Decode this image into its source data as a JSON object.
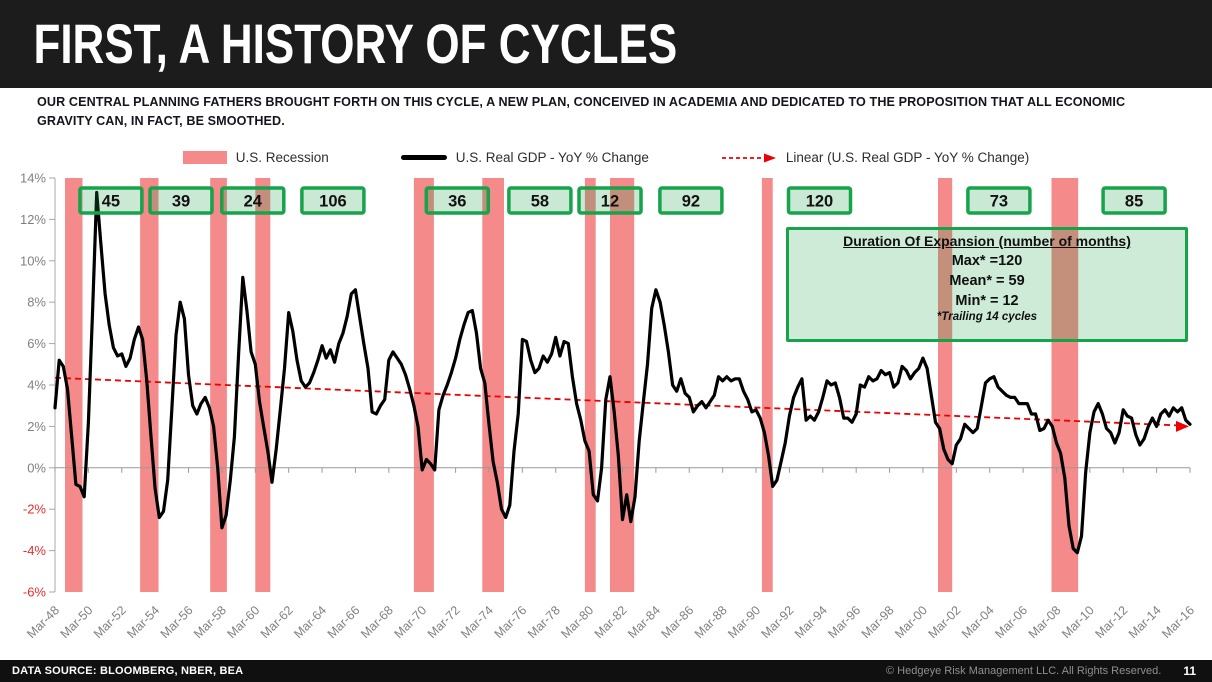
{
  "header": {
    "title": "FIRST, A HISTORY OF CYCLES"
  },
  "subtitle": "OUR CENTRAL PLANNING FATHERS BROUGHT FORTH ON THIS CYCLE, A NEW PLAN, CONCEIVED IN ACADEMIA AND DEDICATED TO THE PROPOSITION THAT ALL ECONOMIC GRAVITY CAN, IN FACT, BE SMOOTHED.",
  "legend": {
    "recession_label": "U.S. Recession",
    "gdp_label": "U.S. Real GDP - YoY % Change",
    "linear_label": "Linear (U.S. Real GDP - YoY % Change)"
  },
  "annotation_box": {
    "title": "Duration Of Expansion (number of months)",
    "max_line": "Max* =120",
    "mean_line": "Mean* = 59",
    "min_line": "Min* = 12",
    "footnote": "*Trailing 14 cycles"
  },
  "footer": {
    "data_source": "DATA SOURCE: BLOOMBERG, NBER, BEA",
    "copyright": "© Hedgeye Risk Management LLC. All Rights Reserved.",
    "page_number": "11"
  },
  "colors": {
    "header_bg": "#1C1C1C",
    "recession_fill": "#F48A8A",
    "gdp_line": "#000000",
    "trend_line": "#EC0000",
    "expansion_box_border": "#17A34B",
    "expansion_box_fill": "rgba(28,162,75,0.23)",
    "axis_line": "#A8A8A8",
    "zero_line": "#999999",
    "axis_label_gray": "#808080",
    "negative_label_red": "#E03030"
  },
  "chart_data": {
    "type": "line",
    "title": "U.S. Real GDP - YoY % Change with U.S. Recessions",
    "unit": "%",
    "xlim": [
      1948.2,
      2016.2
    ],
    "ylim": [
      -6,
      14
    ],
    "grid": "zero-line only",
    "legend_position": "top",
    "y_tick_values": [
      14,
      12,
      10,
      8,
      6,
      4,
      2,
      0,
      -2,
      -4,
      -6
    ],
    "y_tick_labels": [
      "14%",
      "12%",
      "10%",
      "8%",
      "6%",
      "4%",
      "2%",
      "0%",
      "-2%",
      "-4%",
      "-6%"
    ],
    "x_tick_step_years": 2,
    "x_tick_labels": [
      "Mar-48",
      "Mar-50",
      "Mar-52",
      "Mar-54",
      "Mar-56",
      "Mar-58",
      "Mar-60",
      "Mar-62",
      "Mar-64",
      "Mar-66",
      "Mar-68",
      "Mar-70",
      "Mar-72",
      "Mar-74",
      "Mar-76",
      "Mar-78",
      "Mar-80",
      "Mar-82",
      "Mar-84",
      "Mar-86",
      "Mar-88",
      "Mar-90",
      "Mar-92",
      "Mar-94",
      "Mar-96",
      "Mar-98",
      "Mar-00",
      "Mar-02",
      "Mar-04",
      "Mar-06",
      "Mar-08",
      "Mar-10",
      "Mar-12",
      "Mar-14",
      "Mar-16"
    ],
    "series": [
      {
        "name": "U.S. Real GDP - YoY % Change",
        "x_start": 1948.2,
        "x_step": 0.25,
        "values": [
          2.9,
          5.2,
          4.9,
          3.8,
          1.5,
          -0.8,
          -0.9,
          -1.4,
          2.2,
          7.6,
          13.3,
          10.8,
          8.4,
          6.9,
          5.8,
          5.4,
          5.5,
          4.9,
          5.3,
          6.2,
          6.8,
          6.2,
          4.2,
          1.5,
          -1.0,
          -2.4,
          -2.1,
          -0.6,
          2.8,
          6.4,
          8.0,
          7.2,
          4.5,
          3.0,
          2.6,
          3.1,
          3.4,
          2.9,
          2.0,
          0.0,
          -2.9,
          -2.3,
          -0.6,
          1.5,
          5.5,
          9.2,
          7.6,
          5.6,
          5.0,
          3.2,
          2.0,
          0.8,
          -0.7,
          0.9,
          2.8,
          4.8,
          7.5,
          6.6,
          5.2,
          4.2,
          3.9,
          4.1,
          4.6,
          5.2,
          5.9,
          5.3,
          5.7,
          5.1,
          6.0,
          6.5,
          7.3,
          8.4,
          8.6,
          7.3,
          6.0,
          4.8,
          2.7,
          2.6,
          3.0,
          3.3,
          5.2,
          5.6,
          5.3,
          5.0,
          4.5,
          3.8,
          3.0,
          2.0,
          -0.1,
          0.4,
          0.2,
          -0.1,
          2.8,
          3.5,
          4.0,
          4.6,
          5.3,
          6.2,
          6.9,
          7.5,
          7.6,
          6.5,
          4.8,
          4.1,
          2.1,
          0.3,
          -0.7,
          -2.0,
          -2.4,
          -1.8,
          0.8,
          2.6,
          6.2,
          6.1,
          5.2,
          4.6,
          4.8,
          5.4,
          5.1,
          5.5,
          6.3,
          5.4,
          6.1,
          6.0,
          4.4,
          3.1,
          2.3,
          1.3,
          0.8,
          -1.3,
          -1.6,
          0.0,
          3.3,
          4.4,
          2.7,
          0.6,
          -2.5,
          -1.3,
          -2.6,
          -1.4,
          1.3,
          3.2,
          5.0,
          7.7,
          8.6,
          8.0,
          6.9,
          5.6,
          4.0,
          3.7,
          4.3,
          3.6,
          3.4,
          2.7,
          3.0,
          3.2,
          2.9,
          3.2,
          3.5,
          4.4,
          4.2,
          4.4,
          4.2,
          4.3,
          4.3,
          3.7,
          3.3,
          2.7,
          2.8,
          2.4,
          1.7,
          0.6,
          -0.9,
          -0.6,
          0.3,
          1.2,
          2.5,
          3.4,
          3.9,
          4.3,
          2.3,
          2.5,
          2.3,
          2.7,
          3.4,
          4.2,
          4.0,
          4.1,
          3.4,
          2.4,
          2.4,
          2.2,
          2.6,
          4.0,
          3.9,
          4.4,
          4.2,
          4.3,
          4.7,
          4.5,
          4.6,
          3.9,
          4.1,
          4.9,
          4.7,
          4.3,
          4.6,
          4.8,
          5.3,
          4.8,
          3.5,
          2.2,
          1.9,
          0.9,
          0.4,
          0.2,
          1.1,
          1.4,
          2.1,
          1.9,
          1.7,
          1.9,
          3.0,
          4.1,
          4.3,
          4.4,
          3.9,
          3.7,
          3.5,
          3.4,
          3.4,
          3.1,
          3.1,
          3.1,
          2.6,
          2.6,
          1.8,
          1.9,
          2.3,
          2.0,
          1.2,
          0.7,
          -0.5,
          -2.8,
          -3.9,
          -4.1,
          -3.3,
          -0.2,
          1.7,
          2.7,
          3.1,
          2.6,
          1.9,
          1.7,
          1.2,
          1.7,
          2.8,
          2.5,
          2.4,
          1.6,
          1.1,
          1.4,
          2.0,
          2.4,
          2.0,
          2.6,
          2.8,
          2.5,
          2.9,
          2.7,
          2.9,
          2.3,
          2.1
        ]
      }
    ],
    "trend": {
      "name": "Linear (U.S. Real GDP - YoY % Change)",
      "start_value": 4.35,
      "end_value": 2.05
    },
    "recessions": [
      [
        1948.8,
        1949.85
      ],
      [
        1953.3,
        1954.4
      ],
      [
        1957.5,
        1958.5
      ],
      [
        1960.2,
        1961.1
      ],
      [
        1969.7,
        1970.9
      ],
      [
        1973.8,
        1975.1
      ],
      [
        1979.95,
        1980.6
      ],
      [
        1981.45,
        1982.9
      ],
      [
        1990.55,
        1991.2
      ],
      [
        2001.1,
        2001.95
      ],
      [
        2007.9,
        2009.5
      ]
    ],
    "expansion_durations": [
      {
        "months": "45",
        "year": 1951.55
      },
      {
        "months": "39",
        "year": 1955.75
      },
      {
        "months": "24",
        "year": 1960.05
      },
      {
        "months": "106",
        "year": 1964.85
      },
      {
        "months": "36",
        "year": 1972.3
      },
      {
        "months": "58",
        "year": 1977.25
      },
      {
        "months": "12",
        "year": 1981.45
      },
      {
        "months": "92",
        "year": 1986.3
      },
      {
        "months": "120",
        "year": 1994.0
      },
      {
        "months": "73",
        "year": 2004.75
      },
      {
        "months": "85",
        "year": 2012.85
      }
    ]
  }
}
